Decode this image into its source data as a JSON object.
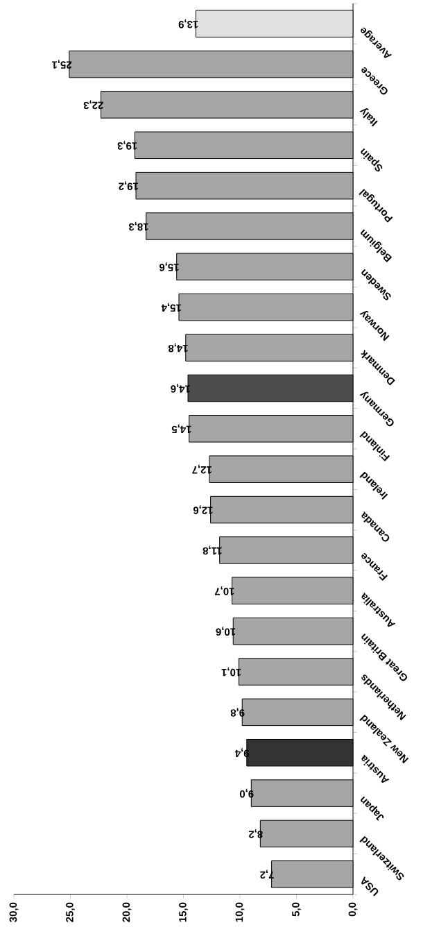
{
  "chart_data": {
    "type": "bar",
    "orientation": "horizontal",
    "categories": [
      "Average",
      "Greece",
      "Italy",
      "Spain",
      "Portugal",
      "Belgium",
      "Sweden",
      "Norway",
      "Denmark",
      "Germany",
      "Finland",
      "Ireland",
      "Canada",
      "France",
      "Australia",
      "Great Britain",
      "Netherlands",
      "New Zealand",
      "Austria",
      "Japan",
      "Switzerland",
      "USA"
    ],
    "values": [
      13.9,
      25.1,
      22.3,
      19.3,
      19.2,
      18.3,
      15.6,
      15.4,
      14.8,
      14.6,
      14.5,
      12.7,
      12.6,
      11.8,
      10.7,
      10.6,
      10.1,
      9.8,
      9.4,
      9.0,
      8.2,
      7.2
    ],
    "value_labels": [
      "13,9",
      "25,1",
      "22,3",
      "19,3",
      "19,2",
      "18,3",
      "15,6",
      "15,4",
      "14,8",
      "14,6",
      "14,5",
      "12,7",
      "12,6",
      "11,8",
      "10,7",
      "10,6",
      "10,1",
      "9,8",
      "9,4",
      "9,0",
      "8,2",
      "7,2"
    ],
    "colors": [
      "#e0e0e0",
      "#a6a6a6",
      "#a6a6a6",
      "#a6a6a6",
      "#a6a6a6",
      "#a6a6a6",
      "#a6a6a6",
      "#a6a6a6",
      "#a6a6a6",
      "#4d4d4d",
      "#a6a6a6",
      "#a6a6a6",
      "#a6a6a6",
      "#a6a6a6",
      "#a6a6a6",
      "#a6a6a6",
      "#a6a6a6",
      "#a6a6a6",
      "#333333",
      "#a6a6a6",
      "#a6a6a6",
      "#a6a6a6"
    ],
    "xlim": [
      30,
      0
    ],
    "xticks": [
      {
        "value": 30,
        "label": "30,0"
      },
      {
        "value": 25,
        "label": "25,0"
      },
      {
        "value": 20,
        "label": "20,0"
      },
      {
        "value": 15,
        "label": "15,0"
      },
      {
        "value": 10,
        "label": "10,0"
      },
      {
        "value": 5,
        "label": "5,0"
      },
      {
        "value": 0,
        "label": "0,0"
      }
    ]
  }
}
